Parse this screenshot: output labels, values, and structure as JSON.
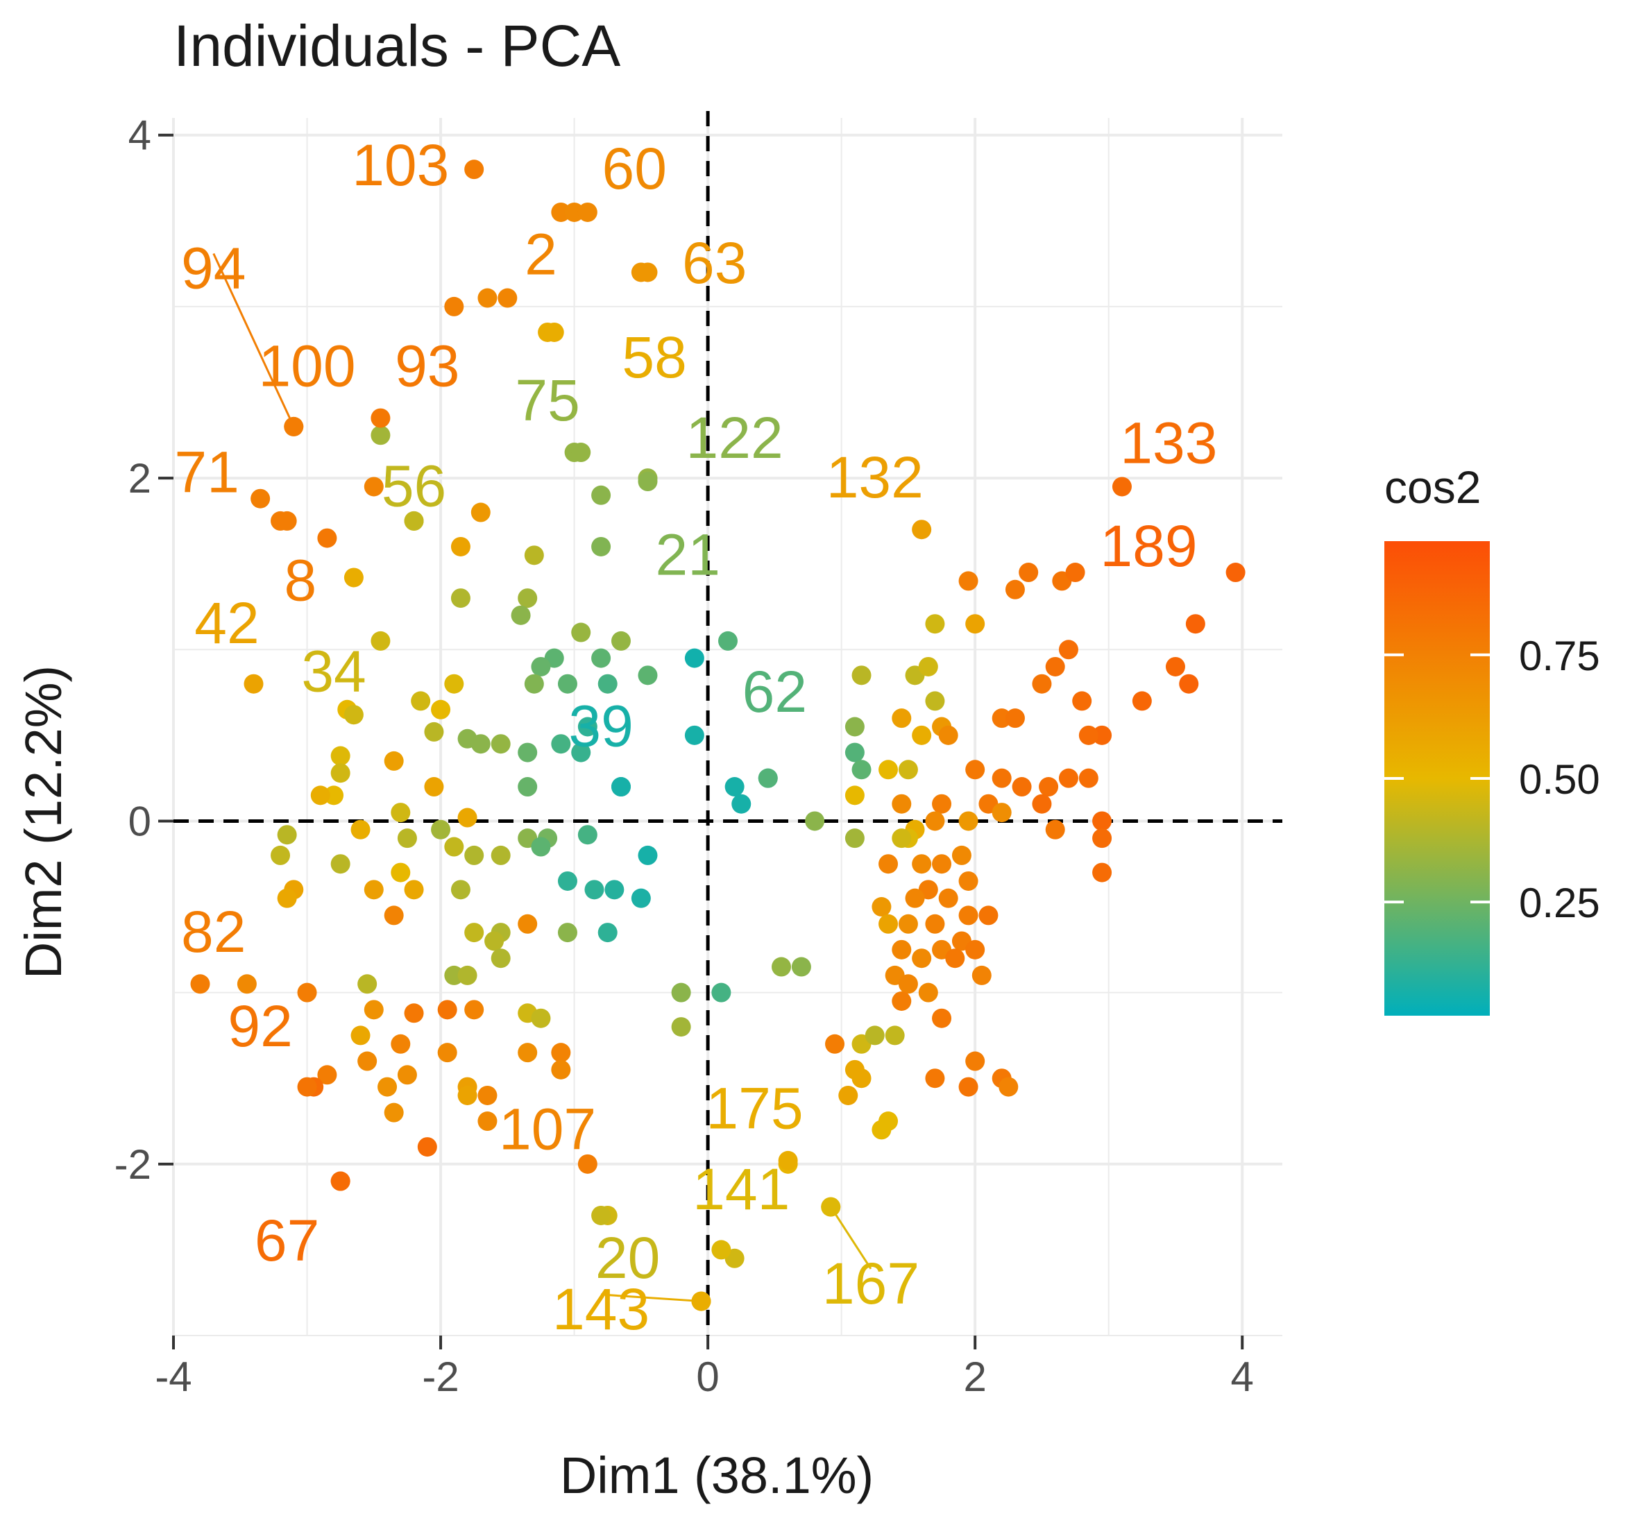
{
  "chart_data": {
    "type": "scatter",
    "title": "Individuals - PCA",
    "xlabel": "Dim1 (38.1%)",
    "ylabel": "Dim2 (12.2%)",
    "xlim": [
      -4.0,
      4.3
    ],
    "ylim": [
      -3.0,
      4.1
    ],
    "xticks": [
      -4,
      -2,
      0,
      2,
      4
    ],
    "yticks": [
      -2,
      0,
      2,
      4
    ],
    "xtick_labels": [
      "-4",
      "-2",
      "0",
      "2",
      "4"
    ],
    "ytick_labels": [
      "-2",
      "0",
      "2",
      "4"
    ],
    "grid": true,
    "reference_lines": {
      "x": 0,
      "y": 0,
      "style": "dashed"
    },
    "legend": {
      "title": "cos2",
      "placement": "right",
      "breaks": [
        0.25,
        0.5,
        0.75
      ],
      "break_labels": [
        "0.25",
        "0.50",
        "0.75"
      ],
      "range": [
        0.02,
        0.98
      ],
      "gradient": [
        "#00AFBB",
        "#E7B800",
        "#FC4E07"
      ]
    },
    "labeled_points": [
      {
        "label": "103",
        "x": -1.75,
        "y": 3.8,
        "cos2": 0.78,
        "dx": -0.55,
        "dy": 0.02
      },
      {
        "label": "60",
        "x": -0.9,
        "y": 3.55,
        "cos2": 0.72,
        "dx": 0.35,
        "dy": 0.25
      },
      {
        "label": "94",
        "x": -3.1,
        "y": 2.3,
        "cos2": 0.77,
        "dx": -0.6,
        "dy": 0.92,
        "leader": true
      },
      {
        "label": "2",
        "x": -1.5,
        "y": 3.05,
        "cos2": 0.74,
        "dx": 0.25,
        "dy": 0.25
      },
      {
        "label": "63",
        "x": -0.45,
        "y": 3.2,
        "cos2": 0.66,
        "dx": 0.5,
        "dy": 0.05
      },
      {
        "label": "58",
        "x": -1.15,
        "y": 2.85,
        "cos2": 0.55,
        "dx": 0.75,
        "dy": -0.15
      },
      {
        "label": "100",
        "x": -3.1,
        "y": 2.3,
        "cos2": 0.78,
        "dx": 0.1,
        "dy": 0.35
      },
      {
        "label": "93",
        "x": -2.45,
        "y": 2.35,
        "cos2": 0.8,
        "dx": 0.35,
        "dy": 0.3
      },
      {
        "label": "75",
        "x": -0.95,
        "y": 2.15,
        "cos2": 0.32,
        "dx": -0.25,
        "dy": 0.3
      },
      {
        "label": "122",
        "x": -0.45,
        "y": 1.98,
        "cos2": 0.3,
        "dx": 0.65,
        "dy": 0.25
      },
      {
        "label": "71",
        "x": -3.35,
        "y": 1.88,
        "cos2": 0.77,
        "dx": -0.4,
        "dy": 0.15
      },
      {
        "label": "56",
        "x": -2.2,
        "y": 1.75,
        "cos2": 0.42,
        "dx": 0.0,
        "dy": 0.2
      },
      {
        "label": "132",
        "x": 1.6,
        "y": 1.7,
        "cos2": 0.62,
        "dx": -0.35,
        "dy": 0.3
      },
      {
        "label": "133",
        "x": 3.1,
        "y": 1.95,
        "cos2": 0.86,
        "dx": 0.35,
        "dy": 0.25
      },
      {
        "label": "189",
        "x": 3.95,
        "y": 1.45,
        "cos2": 0.9,
        "dx": -0.65,
        "dy": 0.15
      },
      {
        "label": "21",
        "x": -0.8,
        "y": 1.6,
        "cos2": 0.28,
        "dx": 0.65,
        "dy": -0.05
      },
      {
        "label": "8",
        "x": -3.15,
        "y": 1.75,
        "cos2": 0.78,
        "dx": 0.1,
        "dy": -0.35
      },
      {
        "label": "42",
        "x": -3.4,
        "y": 0.8,
        "cos2": 0.6,
        "dx": -0.2,
        "dy": 0.35
      },
      {
        "label": "34",
        "x": -2.65,
        "y": 0.62,
        "cos2": 0.45,
        "dx": -0.15,
        "dy": 0.25
      },
      {
        "label": "39",
        "x": -0.65,
        "y": 0.2,
        "cos2": 0.05,
        "dx": -0.15,
        "dy": 0.35
      },
      {
        "label": "62",
        "x": 0.45,
        "y": 0.25,
        "cos2": 0.18,
        "dx": 0.05,
        "dy": 0.5
      },
      {
        "label": "82",
        "x": -3.8,
        "y": -0.95,
        "cos2": 0.78,
        "dx": 0.1,
        "dy": 0.3
      },
      {
        "label": "92",
        "x": -3.0,
        "y": -1.55,
        "cos2": 0.82,
        "dx": -0.35,
        "dy": 0.35
      },
      {
        "label": "107",
        "x": -1.65,
        "y": -1.6,
        "cos2": 0.74,
        "dx": 0.45,
        "dy": -0.2
      },
      {
        "label": "175",
        "x": 0.6,
        "y": -1.98,
        "cos2": 0.55,
        "dx": -0.25,
        "dy": 0.3
      },
      {
        "label": "141",
        "x": 0.1,
        "y": -2.5,
        "cos2": 0.48,
        "dx": 0.15,
        "dy": 0.35
      },
      {
        "label": "67",
        "x": -2.75,
        "y": -2.1,
        "cos2": 0.86,
        "dx": -0.4,
        "dy": -0.35
      },
      {
        "label": "20",
        "x": -0.8,
        "y": -2.3,
        "cos2": 0.43,
        "dx": 0.2,
        "dy": -0.25
      },
      {
        "label": "167",
        "x": 0.92,
        "y": -2.25,
        "cos2": 0.48,
        "dx": 0.3,
        "dy": -0.45,
        "leader": true
      },
      {
        "label": "143",
        "x": -0.05,
        "y": -2.8,
        "cos2": 0.55,
        "dx": -0.75,
        "dy": -0.05,
        "leader": true
      }
    ],
    "points": [
      [
        -1.1,
        3.55,
        0.73
      ],
      [
        -1.9,
        3.0,
        0.76
      ],
      [
        -1.65,
        3.05,
        0.72
      ],
      [
        -1.2,
        2.85,
        0.55
      ],
      [
        -0.5,
        3.2,
        0.66
      ],
      [
        -2.45,
        2.25,
        0.35
      ],
      [
        -2.5,
        1.95,
        0.75
      ],
      [
        -2.2,
        1.75,
        0.42
      ],
      [
        -1.7,
        1.8,
        0.65
      ],
      [
        -1.85,
        1.6,
        0.6
      ],
      [
        -1.0,
        2.15,
        0.32
      ],
      [
        -0.8,
        1.9,
        0.3
      ],
      [
        -0.45,
        2.0,
        0.32
      ],
      [
        -1.3,
        1.55,
        0.4
      ],
      [
        -2.85,
        1.65,
        0.8
      ],
      [
        -2.65,
        1.42,
        0.55
      ],
      [
        -3.2,
        1.75,
        0.78
      ],
      [
        -2.45,
        1.05,
        0.45
      ],
      [
        -1.85,
        1.3,
        0.38
      ],
      [
        -1.35,
        1.3,
        0.35
      ],
      [
        -1.4,
        1.2,
        0.3
      ],
      [
        -0.95,
        1.1,
        0.33
      ],
      [
        -0.65,
        1.05,
        0.32
      ],
      [
        -1.15,
        0.95,
        0.2
      ],
      [
        -1.25,
        0.9,
        0.22
      ],
      [
        -0.8,
        0.95,
        0.2
      ],
      [
        -1.3,
        0.8,
        0.28
      ],
      [
        -1.05,
        0.8,
        0.2
      ],
      [
        -0.75,
        0.8,
        0.15
      ],
      [
        -0.45,
        0.85,
        0.2
      ],
      [
        -2.7,
        0.65,
        0.5
      ],
      [
        -2.15,
        0.7,
        0.45
      ],
      [
        -1.9,
        0.8,
        0.48
      ],
      [
        -2.0,
        0.65,
        0.5
      ],
      [
        -1.8,
        0.48,
        0.3
      ],
      [
        -1.55,
        0.45,
        0.32
      ],
      [
        -1.7,
        0.45,
        0.3
      ],
      [
        -1.35,
        0.4,
        0.22
      ],
      [
        -1.1,
        0.45,
        0.15
      ],
      [
        -0.9,
        0.55,
        0.1
      ],
      [
        -0.95,
        0.4,
        0.12
      ],
      [
        -2.05,
        0.52,
        0.4
      ],
      [
        -2.75,
        0.38,
        0.48
      ],
      [
        -2.35,
        0.35,
        0.62
      ],
      [
        -2.75,
        0.28,
        0.45
      ],
      [
        -2.05,
        0.2,
        0.6
      ],
      [
        -1.8,
        0.02,
        0.58
      ],
      [
        -2.8,
        0.15,
        0.5
      ],
      [
        -2.9,
        0.15,
        0.55
      ],
      [
        -2.3,
        0.05,
        0.45
      ],
      [
        -1.35,
        0.2,
        0.22
      ],
      [
        -0.65,
        0.2,
        0.06
      ],
      [
        -0.1,
        0.5,
        0.05
      ],
      [
        0.2,
        0.2,
        0.05
      ],
      [
        0.45,
        0.25,
        0.06
      ],
      [
        0.25,
        0.1,
        0.05
      ],
      [
        -0.1,
        0.95,
        0.04
      ],
      [
        0.15,
        1.05,
        0.18
      ],
      [
        -2.0,
        -0.05,
        0.35
      ],
      [
        -2.25,
        -0.1,
        0.4
      ],
      [
        -2.6,
        -0.05,
        0.55
      ],
      [
        -2.75,
        -0.25,
        0.4
      ],
      [
        -1.9,
        -0.15,
        0.42
      ],
      [
        -1.75,
        -0.2,
        0.38
      ],
      [
        -1.55,
        -0.2,
        0.38
      ],
      [
        -1.35,
        -0.1,
        0.3
      ],
      [
        -1.2,
        -0.1,
        0.25
      ],
      [
        -0.9,
        -0.08,
        0.15
      ],
      [
        -1.25,
        -0.15,
        0.2
      ],
      [
        -0.45,
        -0.2,
        0.05
      ],
      [
        -3.15,
        -0.08,
        0.4
      ],
      [
        -3.2,
        -0.2,
        0.42
      ],
      [
        -2.3,
        -0.3,
        0.5
      ],
      [
        -2.2,
        -0.4,
        0.58
      ],
      [
        -2.5,
        -0.4,
        0.62
      ],
      [
        -3.1,
        -0.4,
        0.6
      ],
      [
        -3.15,
        -0.45,
        0.58
      ],
      [
        -1.85,
        -0.4,
        0.38
      ],
      [
        -1.05,
        -0.35,
        0.1
      ],
      [
        -0.85,
        -0.4,
        0.1
      ],
      [
        -0.7,
        -0.4,
        0.08
      ],
      [
        -0.5,
        -0.45,
        0.06
      ],
      [
        -2.35,
        -0.55,
        0.75
      ],
      [
        -1.35,
        -0.6,
        0.72
      ],
      [
        -1.75,
        -0.65,
        0.42
      ],
      [
        -1.55,
        -0.65,
        0.38
      ],
      [
        -1.6,
        -0.7,
        0.4
      ],
      [
        -1.05,
        -0.65,
        0.3
      ],
      [
        -0.75,
        -0.65,
        0.1
      ],
      [
        -1.55,
        -0.8,
        0.38
      ],
      [
        -1.9,
        -0.9,
        0.35
      ],
      [
        -1.8,
        -0.9,
        0.38
      ],
      [
        -2.55,
        -0.95,
        0.4
      ],
      [
        -3.45,
        -0.95,
        0.72
      ],
      [
        -2.5,
        -1.1,
        0.68
      ],
      [
        -2.2,
        -1.12,
        0.8
      ],
      [
        -1.95,
        -1.1,
        0.82
      ],
      [
        -1.75,
        -1.1,
        0.75
      ],
      [
        -1.35,
        -1.12,
        0.45
      ],
      [
        -1.25,
        -1.15,
        0.42
      ],
      [
        -2.6,
        -1.25,
        0.58
      ],
      [
        -2.3,
        -1.3,
        0.75
      ],
      [
        -1.95,
        -1.35,
        0.72
      ],
      [
        -1.35,
        -1.35,
        0.7
      ],
      [
        -1.1,
        -1.35,
        0.75
      ],
      [
        -2.55,
        -1.4,
        0.72
      ],
      [
        -2.25,
        -1.48,
        0.7
      ],
      [
        -2.85,
        -1.48,
        0.78
      ],
      [
        -1.8,
        -1.55,
        0.62
      ],
      [
        -1.1,
        -1.45,
        0.72
      ],
      [
        -2.4,
        -1.55,
        0.68
      ],
      [
        -2.35,
        -1.7,
        0.68
      ],
      [
        -1.8,
        -1.6,
        0.6
      ],
      [
        -1.65,
        -1.75,
        0.72
      ],
      [
        -2.95,
        -1.55,
        0.86
      ],
      [
        -2.1,
        -1.9,
        0.86
      ],
      [
        -0.9,
        -2.0,
        0.78
      ],
      [
        -0.75,
        -2.3,
        0.45
      ],
      [
        -2.75,
        -2.1,
        0.86
      ],
      [
        -0.05,
        -2.8,
        0.55
      ],
      [
        0.2,
        -2.55,
        0.45
      ],
      [
        0.92,
        -2.25,
        0.48
      ],
      [
        0.6,
        -2.0,
        0.52
      ],
      [
        -0.2,
        -1.2,
        0.35
      ],
      [
        -0.2,
        -1.0,
        0.3
      ],
      [
        0.1,
        -1.0,
        0.15
      ],
      [
        0.55,
        -0.85,
        0.32
      ],
      [
        0.7,
        -0.85,
        0.3
      ],
      [
        0.8,
        0.0,
        0.3
      ],
      [
        1.1,
        0.55,
        0.3
      ],
      [
        1.1,
        0.4,
        0.18
      ],
      [
        1.15,
        0.3,
        0.2
      ],
      [
        1.1,
        0.15,
        0.5
      ],
      [
        1.35,
        0.3,
        0.5
      ],
      [
        1.5,
        0.3,
        0.45
      ],
      [
        1.6,
        0.5,
        0.55
      ],
      [
        1.75,
        0.55,
        0.65
      ],
      [
        1.8,
        0.5,
        0.72
      ],
      [
        1.45,
        0.6,
        0.62
      ],
      [
        1.15,
        0.85,
        0.4
      ],
      [
        1.55,
        0.85,
        0.42
      ],
      [
        1.65,
        0.9,
        0.45
      ],
      [
        1.7,
        0.7,
        0.42
      ],
      [
        1.7,
        1.15,
        0.45
      ],
      [
        2.0,
        1.15,
        0.6
      ],
      [
        1.95,
        1.4,
        0.78
      ],
      [
        2.3,
        1.35,
        0.8
      ],
      [
        2.4,
        1.45,
        0.82
      ],
      [
        2.65,
        1.4,
        0.82
      ],
      [
        2.75,
        1.45,
        0.85
      ],
      [
        2.5,
        0.8,
        0.82
      ],
      [
        2.6,
        0.9,
        0.84
      ],
      [
        2.7,
        1.0,
        0.85
      ],
      [
        2.8,
        0.7,
        0.86
      ],
      [
        3.25,
        0.7,
        0.88
      ],
      [
        3.5,
        0.9,
        0.88
      ],
      [
        3.6,
        0.8,
        0.9
      ],
      [
        3.65,
        1.15,
        0.9
      ],
      [
        2.95,
        0.5,
        0.88
      ],
      [
        2.85,
        0.5,
        0.86
      ],
      [
        2.2,
        0.6,
        0.8
      ],
      [
        2.3,
        0.6,
        0.82
      ],
      [
        2.0,
        0.3,
        0.8
      ],
      [
        2.2,
        0.25,
        0.82
      ],
      [
        2.35,
        0.2,
        0.84
      ],
      [
        2.55,
        0.2,
        0.84
      ],
      [
        2.7,
        0.25,
        0.85
      ],
      [
        2.85,
        0.25,
        0.85
      ],
      [
        2.5,
        0.1,
        0.86
      ],
      [
        2.1,
        0.1,
        0.8
      ],
      [
        1.75,
        0.1,
        0.78
      ],
      [
        1.45,
        0.1,
        0.72
      ],
      [
        1.7,
        0.0,
        0.72
      ],
      [
        1.95,
        0.0,
        0.65
      ],
      [
        2.2,
        0.05,
        0.7
      ],
      [
        2.6,
        -0.05,
        0.8
      ],
      [
        2.95,
        0.0,
        0.88
      ],
      [
        2.95,
        -0.1,
        0.86
      ],
      [
        2.95,
        -0.3,
        0.86
      ],
      [
        1.55,
        -0.05,
        0.55
      ],
      [
        1.5,
        -0.1,
        0.48
      ],
      [
        1.45,
        -0.1,
        0.45
      ],
      [
        1.1,
        -0.1,
        0.35
      ],
      [
        1.35,
        -0.25,
        0.75
      ],
      [
        1.6,
        -0.25,
        0.72
      ],
      [
        1.75,
        -0.25,
        0.75
      ],
      [
        1.9,
        -0.2,
        0.72
      ],
      [
        1.95,
        -0.35,
        0.75
      ],
      [
        1.65,
        -0.4,
        0.78
      ],
      [
        1.8,
        -0.45,
        0.76
      ],
      [
        1.55,
        -0.45,
        0.74
      ],
      [
        1.3,
        -0.5,
        0.65
      ],
      [
        1.35,
        -0.6,
        0.6
      ],
      [
        1.5,
        -0.6,
        0.7
      ],
      [
        1.7,
        -0.6,
        0.76
      ],
      [
        1.95,
        -0.55,
        0.78
      ],
      [
        2.1,
        -0.55,
        0.82
      ],
      [
        1.45,
        -0.75,
        0.74
      ],
      [
        1.6,
        -0.8,
        0.72
      ],
      [
        1.75,
        -0.75,
        0.75
      ],
      [
        1.9,
        -0.7,
        0.78
      ],
      [
        2.0,
        -0.75,
        0.8
      ],
      [
        1.85,
        -0.8,
        0.8
      ],
      [
        1.4,
        -0.9,
        0.72
      ],
      [
        1.5,
        -0.95,
        0.74
      ],
      [
        1.65,
        -1.0,
        0.72
      ],
      [
        1.45,
        -1.05,
        0.78
      ],
      [
        1.75,
        -1.15,
        0.8
      ],
      [
        2.05,
        -0.9,
        0.75
      ],
      [
        0.95,
        -1.3,
        0.78
      ],
      [
        1.15,
        -1.3,
        0.45
      ],
      [
        1.25,
        -1.25,
        0.4
      ],
      [
        1.4,
        -1.25,
        0.42
      ],
      [
        1.1,
        -1.45,
        0.58
      ],
      [
        1.15,
        -1.5,
        0.58
      ],
      [
        1.05,
        -1.6,
        0.6
      ],
      [
        1.3,
        -1.8,
        0.5
      ],
      [
        1.35,
        -1.75,
        0.5
      ],
      [
        1.7,
        -1.5,
        0.8
      ],
      [
        1.95,
        -1.55,
        0.82
      ],
      [
        2.2,
        -1.5,
        0.8
      ],
      [
        2.25,
        -1.55,
        0.75
      ],
      [
        2.0,
        -1.4,
        0.78
      ],
      [
        -1.0,
        3.55,
        0.72
      ],
      [
        -3.0,
        -1.0,
        0.78
      ]
    ]
  }
}
